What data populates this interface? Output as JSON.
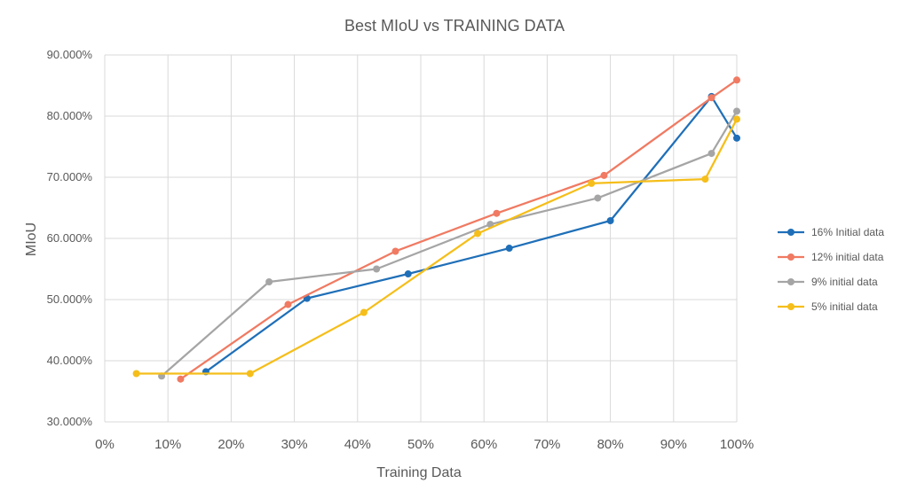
{
  "chart_data": {
    "type": "line",
    "title": "Best MIoU vs TRAINING DATA",
    "xlabel": "Training Data",
    "ylabel": "MIoU",
    "xlim": [
      0,
      100
    ],
    "ylim": [
      30,
      90
    ],
    "x_ticks": [
      "0%",
      "10%",
      "20%",
      "30%",
      "40%",
      "50%",
      "60%",
      "70%",
      "80%",
      "90%",
      "100%"
    ],
    "y_ticks": [
      "30.000%",
      "40.000%",
      "50.000%",
      "60.000%",
      "70.000%",
      "80.000%",
      "90.000%"
    ],
    "grid": true,
    "legend_position": "right",
    "series": [
      {
        "name": "16% Initial data",
        "color": "#1f6fb8",
        "x": [
          16,
          32,
          48,
          64,
          80,
          96,
          100
        ],
        "y": [
          38.2,
          50.2,
          54.2,
          58.4,
          62.9,
          83.2,
          76.4
        ]
      },
      {
        "name": "12% initial data",
        "color": "#f07a62",
        "x": [
          12,
          29,
          46,
          62,
          79,
          96,
          100
        ],
        "y": [
          37.0,
          49.2,
          57.9,
          64.1,
          70.3,
          83.0,
          85.9
        ]
      },
      {
        "name": "9% initial data",
        "color": "#a5a5a5",
        "x": [
          9,
          26,
          43,
          61,
          78,
          96,
          100
        ],
        "y": [
          37.5,
          52.9,
          55.0,
          62.3,
          66.6,
          73.9,
          80.8
        ]
      },
      {
        "name": "5% initial data",
        "color": "#f5be1a",
        "x": [
          5,
          23,
          41,
          59,
          77,
          95,
          100
        ],
        "y": [
          37.9,
          37.9,
          47.9,
          60.8,
          69.0,
          69.7,
          79.5
        ]
      }
    ]
  }
}
